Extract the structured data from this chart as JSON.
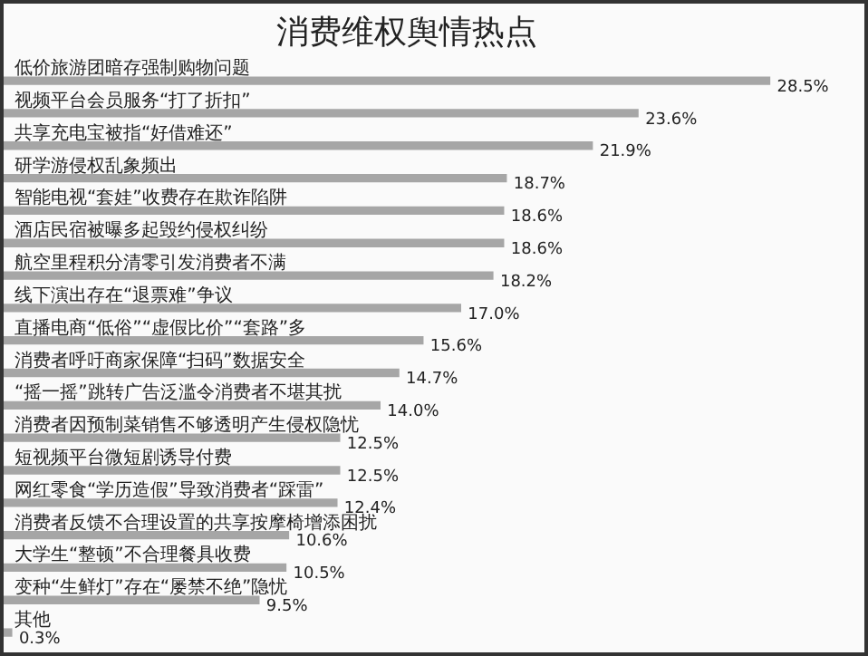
{
  "chart_data": {
    "type": "bar",
    "orientation": "horizontal",
    "title": "消费维权舆情热点",
    "categories": [
      "低价旅游团暗存强制购物问题",
      "视频平台会员服务“打了折扣”",
      "共享充电宝被指“好借难还”",
      "研学游侵权乱象频出",
      "智能电视“套娃”收费存在欺诈陷阱",
      "酒店民宿被曝多起毁约侵权纠纷",
      "航空里程积分清零引发消费者不满",
      "线下演出存在“退票难”争议",
      "直播电商“低俗”“虚假比价”“套路”多",
      "消费者呼吁商家保障“扫码”数据安全",
      "“摇一摇”跳转广告泛滥令消费者不堪其扰",
      "消费者因预制菜销售不够透明产生侵权隐忧",
      "短视频平台微短剧诱导付费",
      "网红零食“学历造假”导致消费者“踩雷”",
      "消费者反馈不合理设置的共享按摩椅增添困扰",
      "大学生“整顿”不合理餐具收费",
      "变种“生鲜灯”存在“屡禁不绝”隐忧",
      "其他"
    ],
    "values": [
      28.5,
      23.6,
      21.9,
      18.7,
      18.6,
      18.6,
      18.2,
      17.0,
      15.6,
      14.7,
      14.0,
      12.5,
      12.5,
      12.4,
      10.6,
      10.5,
      9.5,
      0.3
    ],
    "value_labels": [
      "28.5%",
      "23.6%",
      "21.9%",
      "18.7%",
      "18.6%",
      "18.6%",
      "18.2%",
      "17.0%",
      "15.6%",
      "14.7%",
      "14.0%",
      "12.5%",
      "12.5%",
      "12.4%",
      "10.6%",
      "10.5%",
      "9.5%",
      "0.3%"
    ],
    "color": "#a6a6a6"
  }
}
